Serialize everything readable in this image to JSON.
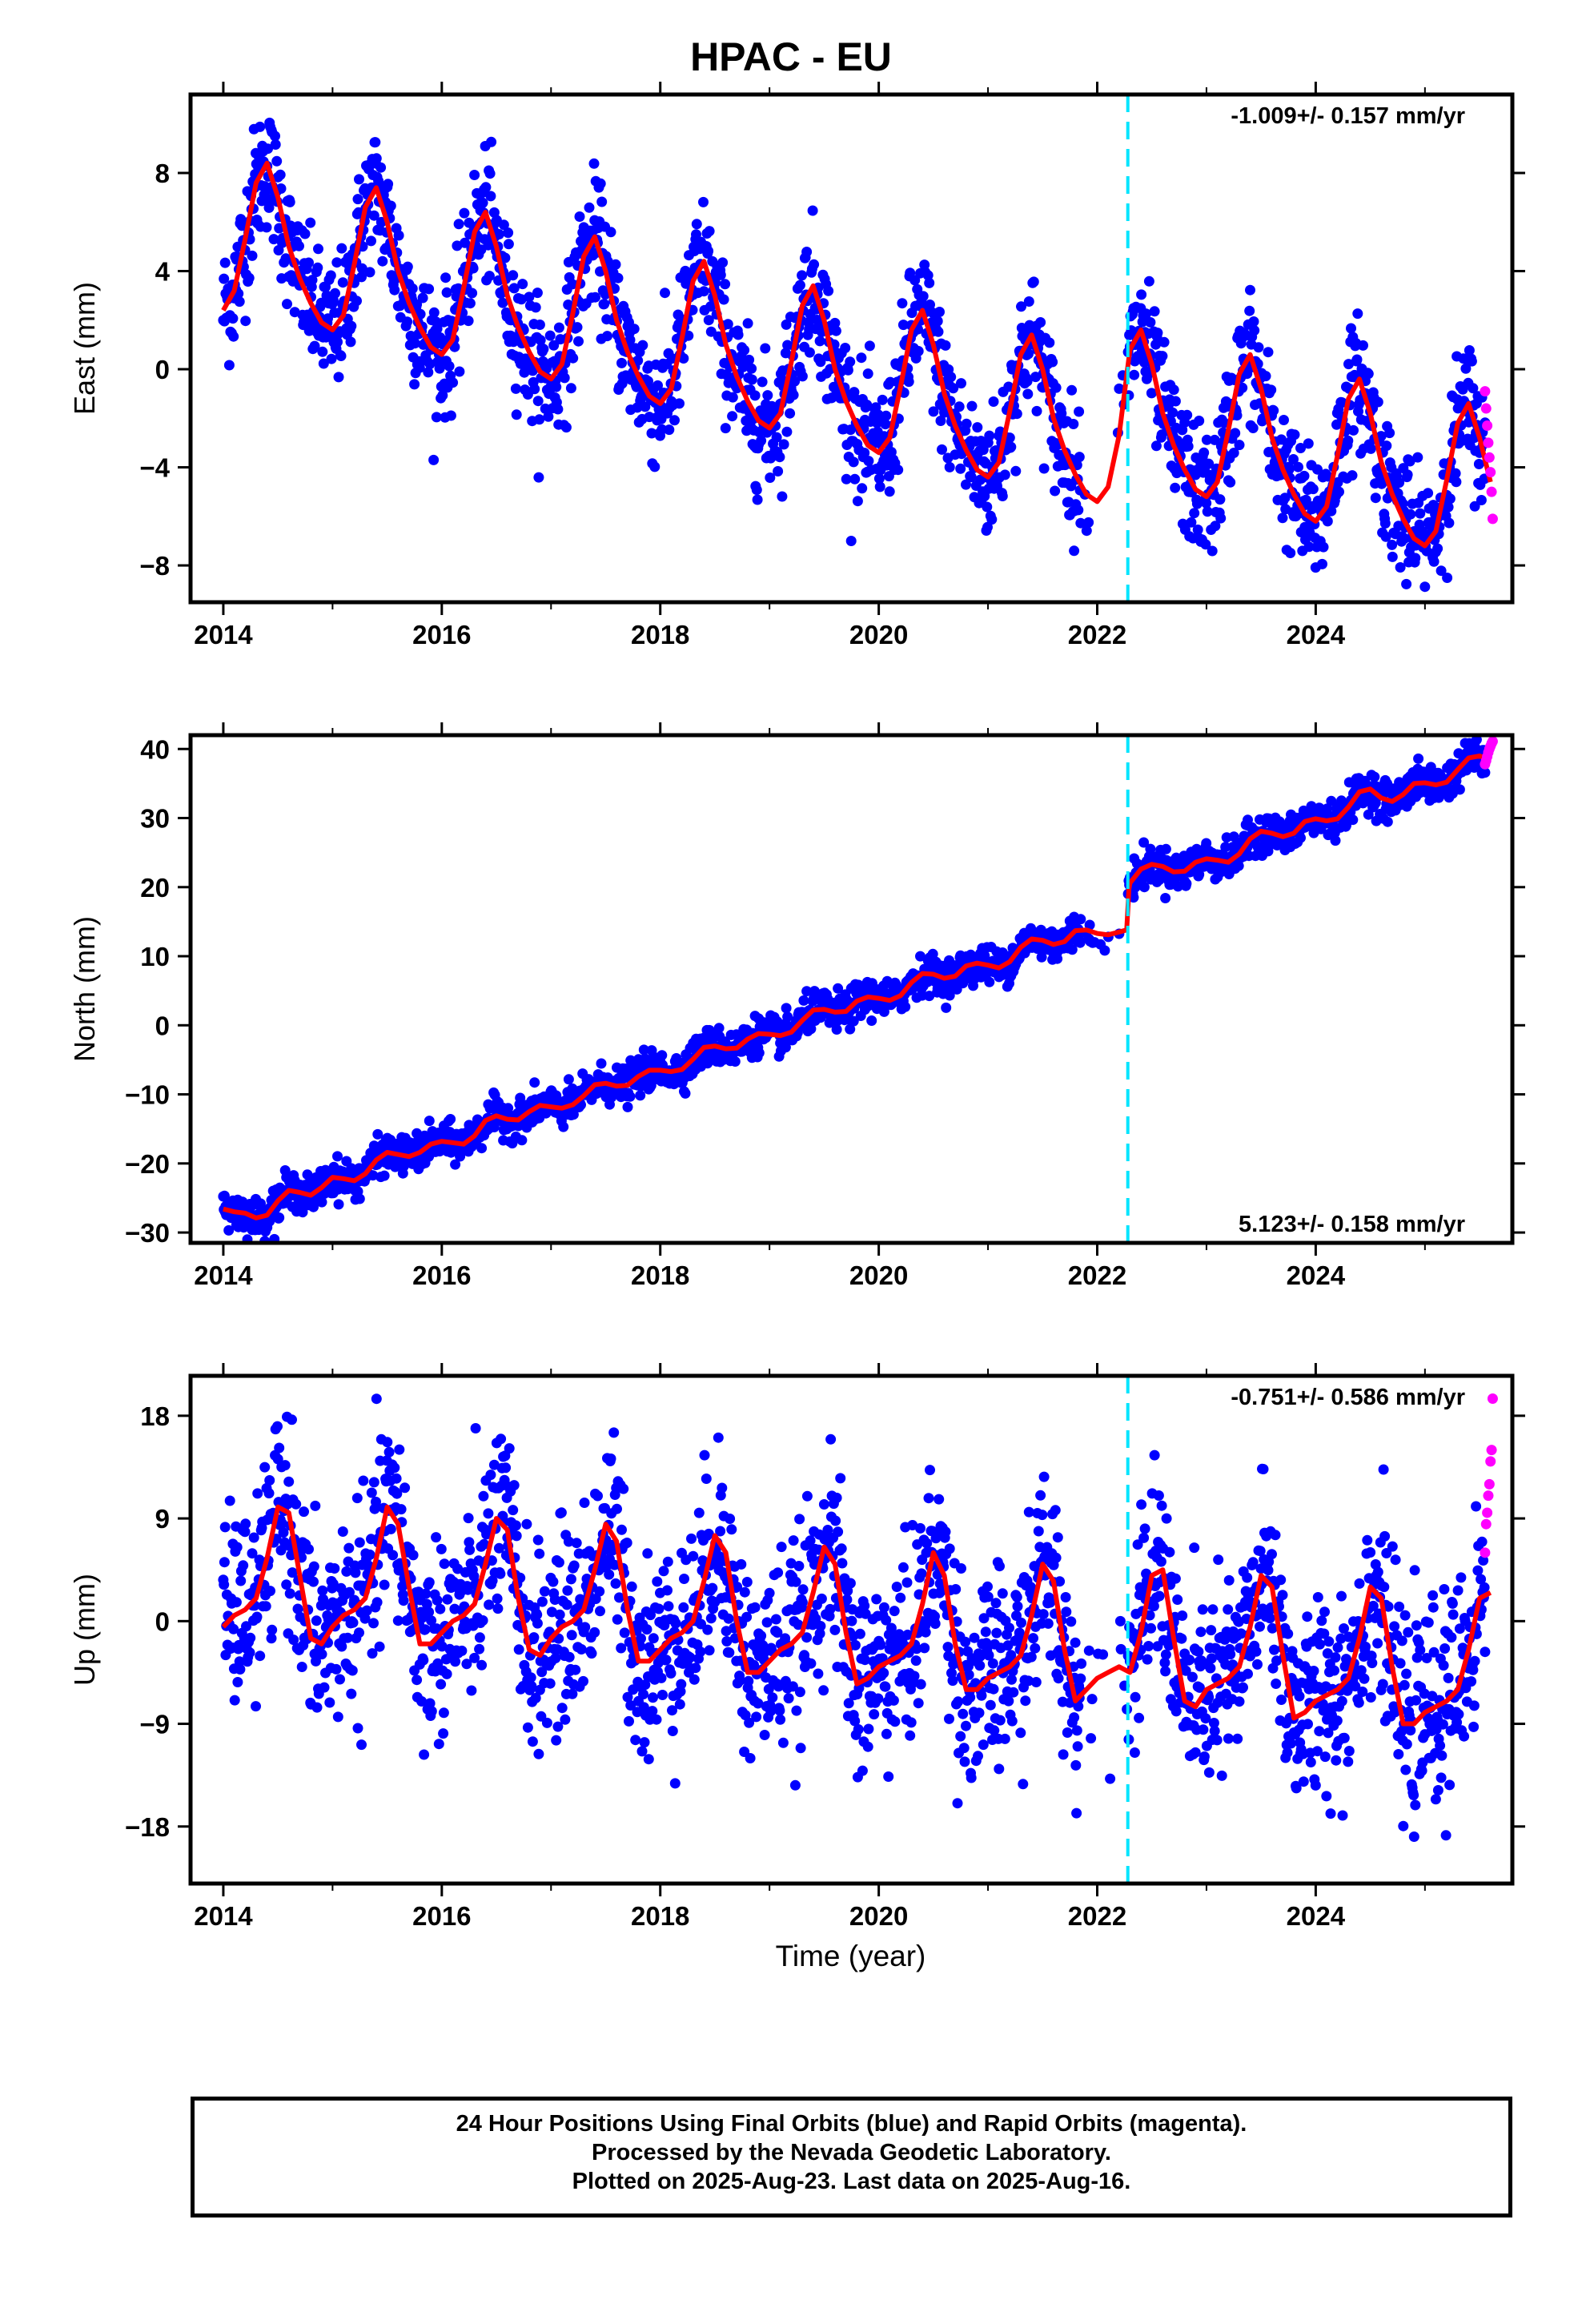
{
  "title": "HPAC - EU",
  "xlabel": "Time (year)",
  "footer": {
    "line1": "24 Hour Positions Using Final Orbits (blue) and Rapid Orbits (magenta).",
    "line2": "Processed by the Nevada Geodetic Laboratory.",
    "line3": "Plotted on 2025-Aug-23. Last data on 2025-Aug-16."
  },
  "colors": {
    "final_orbits": "#0000ff",
    "rapid_orbits": "#ff00ff",
    "model_fit": "#ff0000",
    "event_line": "#00e5ff",
    "frame": "#000000"
  },
  "chart_data": [
    {
      "type": "scatter",
      "component": "east",
      "ylabel": "East (mm)",
      "rate_text": "-1.009+/- 0.157 mm/yr",
      "rate_position": "top-right",
      "xlim": [
        2013.7,
        2025.8
      ],
      "ylim": [
        -9.5,
        11.2
      ],
      "xticks": [
        2014,
        2016,
        2018,
        2020,
        2022,
        2024
      ],
      "xtick_labels": [
        "2014",
        "2016",
        "2018",
        "2020",
        "2022",
        "2024"
      ],
      "yticks": [
        -8,
        -4,
        0,
        4,
        8
      ],
      "ytick_labels": [
        "−8",
        "−4",
        "0",
        "4",
        "8"
      ],
      "event_line_x": 2022.28,
      "fit_curve": {
        "x": [
          2014.0,
          2014.1,
          2014.2,
          2014.3,
          2014.4,
          2014.5,
          2014.6,
          2014.7,
          2014.8,
          2014.9,
          2015.0,
          2015.1,
          2015.2,
          2015.3,
          2015.4,
          2015.5,
          2015.6,
          2015.7,
          2015.8,
          2015.9,
          2016.0,
          2016.1,
          2016.2,
          2016.3,
          2016.4,
          2016.5,
          2016.6,
          2016.7,
          2016.8,
          2016.9,
          2017.0,
          2017.1,
          2017.2,
          2017.3,
          2017.4,
          2017.5,
          2017.6,
          2017.7,
          2017.8,
          2017.9,
          2018.0,
          2018.1,
          2018.2,
          2018.3,
          2018.4,
          2018.5,
          2018.6,
          2018.7,
          2018.8,
          2018.9,
          2019.0,
          2019.1,
          2019.2,
          2019.3,
          2019.4,
          2019.5,
          2019.6,
          2019.7,
          2019.8,
          2019.9,
          2020.0,
          2020.1,
          2020.2,
          2020.3,
          2020.4,
          2020.5,
          2020.6,
          2020.7,
          2020.8,
          2020.9,
          2021.0,
          2021.1,
          2021.2,
          2021.3,
          2021.4,
          2021.5,
          2021.6,
          2021.7,
          2021.8,
          2021.9,
          2022.0,
          2022.1,
          2022.2,
          2022.3,
          2022.4,
          2022.5,
          2022.6,
          2022.7,
          2022.8,
          2022.9,
          2023.0,
          2023.1,
          2023.2,
          2023.3,
          2023.4,
          2023.5,
          2023.6,
          2023.7,
          2023.8,
          2023.9,
          2024.0,
          2024.1,
          2024.2,
          2024.3,
          2024.4,
          2024.5,
          2024.6,
          2024.7,
          2024.8,
          2024.9,
          2025.0,
          2025.1,
          2025.2,
          2025.3,
          2025.4,
          2025.5,
          2025.6
        ],
        "y": [
          2.4,
          3.2,
          5.3,
          7.6,
          8.4,
          7.0,
          5.0,
          3.7,
          2.7,
          1.9,
          1.6,
          2.2,
          4.3,
          6.6,
          7.4,
          6.0,
          4.0,
          2.7,
          1.7,
          0.9,
          0.6,
          1.2,
          3.3,
          5.6,
          6.4,
          5.0,
          3.0,
          1.7,
          0.7,
          -0.1,
          -0.4,
          0.2,
          2.3,
          4.6,
          5.4,
          4.0,
          2.0,
          0.7,
          -0.3,
          -1.1,
          -1.4,
          -0.8,
          1.3,
          3.6,
          4.4,
          3.0,
          1.0,
          -0.3,
          -1.3,
          -2.1,
          -2.4,
          -1.8,
          0.3,
          2.6,
          3.4,
          2.0,
          0.0,
          -1.3,
          -2.3,
          -3.1,
          -3.4,
          -2.8,
          -0.7,
          1.6,
          2.4,
          1.0,
          -1.0,
          -2.3,
          -3.3,
          -4.1,
          -4.4,
          -3.8,
          -1.7,
          0.6,
          1.4,
          0.0,
          -2.0,
          -3.3,
          -4.3,
          -5.1,
          -5.4,
          -4.8,
          -2.7,
          0.8,
          1.6,
          0.2,
          -1.8,
          -3.1,
          -4.1,
          -4.9,
          -5.2,
          -4.6,
          -2.5,
          -0.2,
          0.6,
          -0.8,
          -2.8,
          -4.1,
          -5.1,
          -5.9,
          -6.2,
          -5.6,
          -3.5,
          -1.2,
          -0.4,
          -1.8,
          -3.8,
          -5.1,
          -6.1,
          -6.9,
          -7.2,
          -6.6,
          -4.5,
          -2.2,
          -1.4,
          -2.8,
          -4.6
        ]
      },
      "rapid_points": {
        "x": [
          2025.55,
          2025.56,
          2025.57,
          2025.58,
          2025.59,
          2025.6,
          2025.61,
          2025.62
        ],
        "y": [
          -0.9,
          -1.6,
          -2.3,
          -3.0,
          -3.6,
          -4.2,
          -5.0,
          -6.1
        ]
      }
    },
    {
      "type": "scatter",
      "component": "north",
      "ylabel": "North (mm)",
      "rate_text": "5.123+/- 0.158 mm/yr",
      "rate_position": "bottom-right",
      "xlim": [
        2013.7,
        2025.8
      ],
      "ylim": [
        -31.5,
        42.0
      ],
      "xticks": [
        2014,
        2016,
        2018,
        2020,
        2022,
        2024
      ],
      "xtick_labels": [
        "2014",
        "2016",
        "2018",
        "2020",
        "2022",
        "2024"
      ],
      "yticks": [
        -30,
        -20,
        -10,
        0,
        10,
        20,
        30,
        40
      ],
      "ytick_labels": [
        "−30",
        "−20",
        "−10",
        "0",
        "10",
        "20",
        "30",
        "40"
      ],
      "event_line_x": 2022.28,
      "fit_curve": {
        "x": [
          2014.0,
          2014.1,
          2014.2,
          2014.3,
          2014.4,
          2014.5,
          2014.6,
          2014.7,
          2014.8,
          2014.9,
          2015.0,
          2015.1,
          2015.2,
          2015.3,
          2015.4,
          2015.5,
          2015.6,
          2015.7,
          2015.8,
          2015.9,
          2016.0,
          2016.1,
          2016.2,
          2016.3,
          2016.4,
          2016.5,
          2016.6,
          2016.7,
          2016.8,
          2016.9,
          2017.0,
          2017.1,
          2017.2,
          2017.3,
          2017.4,
          2017.5,
          2017.6,
          2017.7,
          2017.8,
          2017.9,
          2018.0,
          2018.1,
          2018.2,
          2018.3,
          2018.4,
          2018.5,
          2018.6,
          2018.7,
          2018.8,
          2018.9,
          2019.0,
          2019.1,
          2019.2,
          2019.3,
          2019.4,
          2019.5,
          2019.6,
          2019.7,
          2019.8,
          2019.9,
          2020.0,
          2020.1,
          2020.2,
          2020.3,
          2020.4,
          2020.5,
          2020.6,
          2020.7,
          2020.8,
          2020.9,
          2021.0,
          2021.1,
          2021.2,
          2021.3,
          2021.4,
          2021.5,
          2021.6,
          2021.7,
          2021.8,
          2021.9,
          2022.0,
          2022.1,
          2022.2,
          2022.27,
          2022.29,
          2022.3,
          2022.4,
          2022.5,
          2022.6,
          2022.7,
          2022.8,
          2022.9,
          2023.0,
          2023.1,
          2023.2,
          2023.3,
          2023.4,
          2023.5,
          2023.6,
          2023.7,
          2023.8,
          2023.9,
          2024.0,
          2024.1,
          2024.2,
          2024.3,
          2024.4,
          2024.5,
          2024.6,
          2024.7,
          2024.8,
          2024.9,
          2025.0,
          2025.1,
          2025.2,
          2025.3,
          2025.4,
          2025.5,
          2025.6
        ],
        "y": [
          -26.6,
          -27.0,
          -27.2,
          -27.9,
          -27.5,
          -25.4,
          -23.9,
          -24.2,
          -24.6,
          -23.5,
          -22.0,
          -22.2,
          -22.5,
          -21.5,
          -19.5,
          -18.4,
          -18.7,
          -19.0,
          -18.4,
          -17.2,
          -16.8,
          -17.0,
          -17.2,
          -16.0,
          -13.8,
          -13.1,
          -13.6,
          -13.7,
          -12.5,
          -11.6,
          -11.8,
          -12.0,
          -11.5,
          -10.2,
          -8.6,
          -8.4,
          -8.8,
          -8.7,
          -7.4,
          -6.5,
          -6.5,
          -6.7,
          -6.4,
          -4.9,
          -3.2,
          -3.0,
          -3.4,
          -3.3,
          -2.0,
          -1.2,
          -1.3,
          -1.5,
          -1.0,
          0.7,
          2.2,
          2.3,
          1.9,
          2.0,
          3.5,
          4.1,
          3.9,
          3.6,
          4.3,
          6.2,
          7.5,
          7.4,
          6.8,
          7.1,
          8.6,
          9.0,
          8.7,
          8.3,
          9.2,
          11.3,
          12.5,
          12.3,
          11.7,
          12.1,
          13.7,
          13.8,
          13.3,
          13.1,
          13.5,
          13.8,
          19.7,
          20.6,
          22.6,
          23.3,
          23.0,
          22.2,
          22.3,
          23.6,
          24.1,
          23.9,
          23.6,
          24.8,
          27.0,
          28.1,
          27.8,
          27.3,
          27.8,
          29.5,
          29.9,
          29.6,
          29.9,
          31.6,
          33.8,
          34.2,
          32.9,
          32.4,
          33.4,
          35.0,
          35.1,
          34.8,
          35.2,
          37.0,
          38.7,
          39.0,
          38.4
        ]
      },
      "rapid_points": {
        "x": [
          2025.55,
          2025.56,
          2025.57,
          2025.58,
          2025.59,
          2025.6,
          2025.61,
          2025.62
        ],
        "y": [
          37.8,
          38.3,
          38.9,
          39.5,
          40.0,
          40.4,
          40.8,
          41.1
        ]
      }
    },
    {
      "type": "scatter",
      "component": "up",
      "ylabel": "Up (mm)",
      "rate_text": "-0.751+/- 0.586 mm/yr",
      "rate_position": "top-right",
      "xlim": [
        2013.7,
        2025.8
      ],
      "ylim": [
        -23.0,
        21.5
      ],
      "xticks": [
        2014,
        2016,
        2018,
        2020,
        2022,
        2024
      ],
      "xtick_labels": [
        "2014",
        "2016",
        "2018",
        "2020",
        "2022",
        "2024"
      ],
      "yticks": [
        -18,
        -9,
        0,
        9,
        18
      ],
      "ytick_labels": [
        "−18",
        "−9",
        "0",
        "9",
        "18"
      ],
      "event_line_x": 2022.28,
      "fit_curve": {
        "x": [
          2014.0,
          2014.1,
          2014.2,
          2014.3,
          2014.4,
          2014.5,
          2014.6,
          2014.7,
          2014.8,
          2014.9,
          2015.0,
          2015.1,
          2015.2,
          2015.3,
          2015.4,
          2015.5,
          2015.6,
          2015.7,
          2015.8,
          2015.9,
          2016.0,
          2016.1,
          2016.2,
          2016.3,
          2016.4,
          2016.5,
          2016.6,
          2016.7,
          2016.8,
          2016.9,
          2017.0,
          2017.1,
          2017.2,
          2017.3,
          2017.4,
          2017.5,
          2017.6,
          2017.7,
          2017.8,
          2017.9,
          2018.0,
          2018.1,
          2018.2,
          2018.3,
          2018.4,
          2018.5,
          2018.6,
          2018.7,
          2018.8,
          2018.9,
          2019.0,
          2019.1,
          2019.2,
          2019.3,
          2019.4,
          2019.5,
          2019.6,
          2019.7,
          2019.8,
          2019.9,
          2020.0,
          2020.1,
          2020.2,
          2020.3,
          2020.4,
          2020.5,
          2020.6,
          2020.7,
          2020.8,
          2020.9,
          2021.0,
          2021.1,
          2021.2,
          2021.3,
          2021.4,
          2021.5,
          2021.6,
          2021.7,
          2021.8,
          2021.9,
          2022.0,
          2022.1,
          2022.2,
          2022.3,
          2022.4,
          2022.5,
          2022.6,
          2022.7,
          2022.8,
          2022.9,
          2023.0,
          2023.1,
          2023.2,
          2023.3,
          2023.4,
          2023.5,
          2023.6,
          2023.7,
          2023.8,
          2023.9,
          2024.0,
          2024.1,
          2024.2,
          2024.3,
          2024.4,
          2024.5,
          2024.6,
          2024.7,
          2024.8,
          2024.9,
          2025.0,
          2025.1,
          2025.2,
          2025.3,
          2025.4,
          2025.5,
          2025.6
        ],
        "y": [
          -0.5,
          0.5,
          1.0,
          2.0,
          5.5,
          10.0,
          9.5,
          4.0,
          -1.5,
          -2.0,
          -0.5,
          0.5,
          1.0,
          2.0,
          5.5,
          10.0,
          8.5,
          3.0,
          -2.0,
          -2.0,
          -1.0,
          0.0,
          0.5,
          1.5,
          5.0,
          9.0,
          8.0,
          2.0,
          -2.5,
          -3.0,
          -1.5,
          -0.5,
          0.0,
          1.0,
          4.5,
          8.5,
          7.0,
          1.0,
          -3.5,
          -3.5,
          -2.5,
          -1.5,
          -1.0,
          0.0,
          3.5,
          7.5,
          6.0,
          0.0,
          -4.5,
          -4.5,
          -3.5,
          -2.5,
          -2.0,
          -1.0,
          2.5,
          6.5,
          5.0,
          -1.0,
          -5.5,
          -5.0,
          -4.0,
          -3.5,
          -3.0,
          -2.0,
          1.5,
          6.0,
          4.0,
          -2.0,
          -6.0,
          -6.0,
          -5.0,
          -4.5,
          -4.0,
          -3.0,
          0.5,
          5.0,
          3.5,
          -2.5,
          -7.0,
          -6.0,
          -5.0,
          -4.5,
          -4.0,
          -4.5,
          -1.0,
          4.0,
          4.5,
          -1.5,
          -7.0,
          -7.5,
          -6.0,
          -5.5,
          -5.0,
          -4.0,
          -0.5,
          4.0,
          3.0,
          -3.0,
          -8.5,
          -8.0,
          -7.0,
          -6.5,
          -6.0,
          -5.0,
          -1.5,
          3.0,
          2.0,
          -4.0,
          -9.0,
          -9.0,
          -8.0,
          -7.5,
          -7.0,
          -6.0,
          -2.5,
          2.0,
          2.5
        ]
      },
      "rapid_points": {
        "x": [
          2025.55,
          2025.56,
          2025.57,
          2025.58,
          2025.59,
          2025.6,
          2025.61,
          2025.62
        ],
        "y": [
          6.0,
          8.5,
          9.5,
          11.0,
          12.0,
          14.0,
          15.0,
          19.5
        ]
      }
    }
  ]
}
